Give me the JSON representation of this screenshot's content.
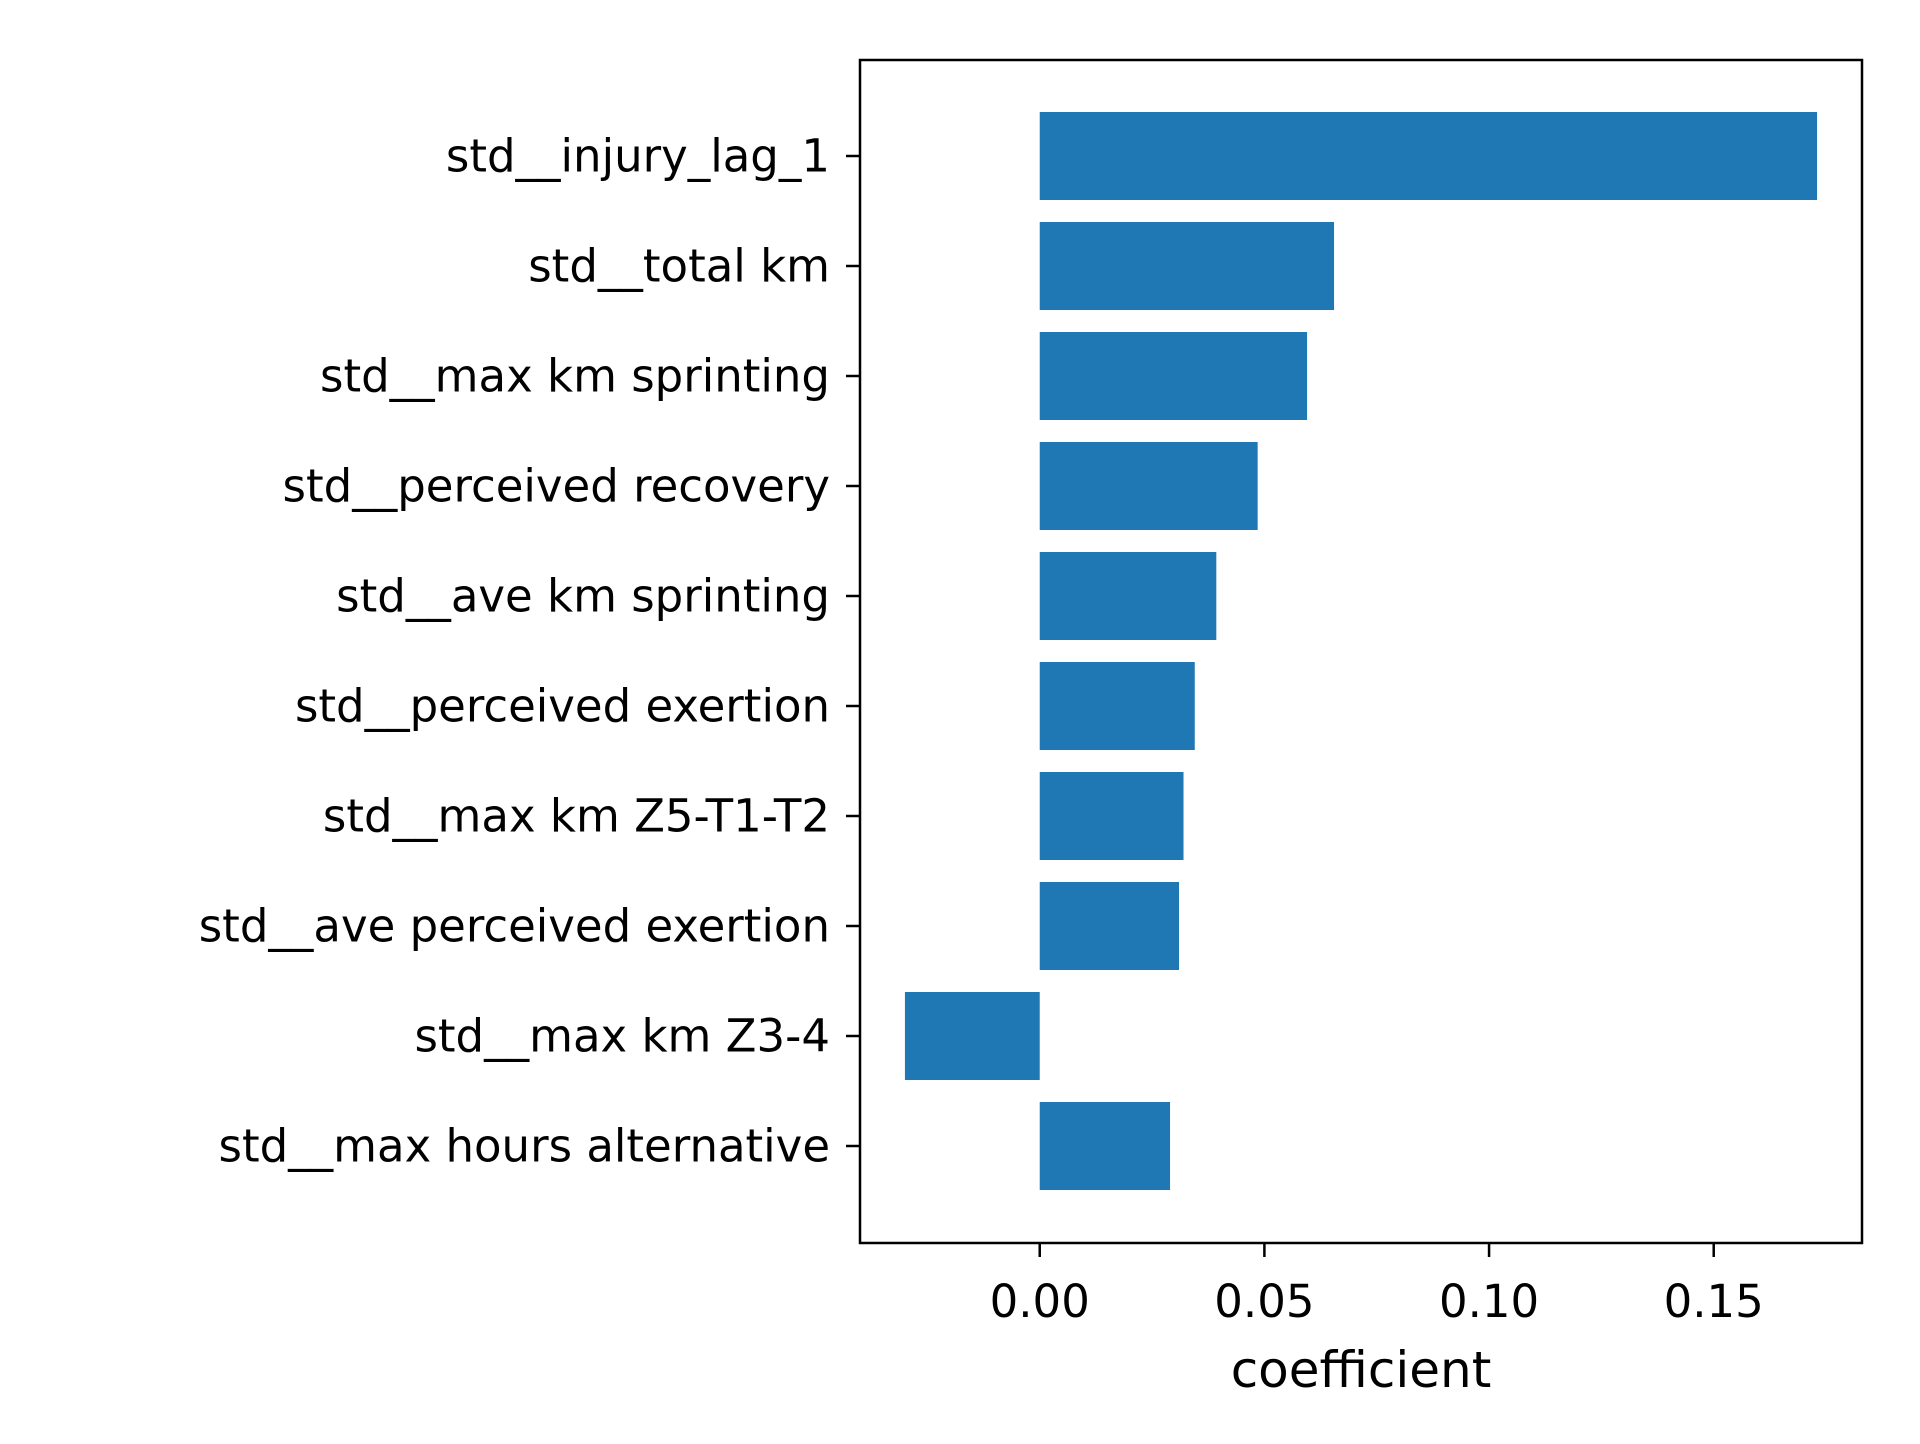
{
  "chart_data": {
    "type": "bar",
    "orientation": "horizontal",
    "categories": [
      "std__injury_lag_1",
      "std__total km",
      "std__max km sprinting",
      "std__perceived recovery",
      "std__ave km sprinting",
      "std__perceived exertion",
      "std__max km Z5-T1-T2",
      "std__ave perceived exertion",
      "std__max km Z3-4",
      "std__max hours alternative"
    ],
    "values": [
      0.173,
      0.0655,
      0.0595,
      0.0485,
      0.0393,
      0.0345,
      0.032,
      0.031,
      -0.03,
      0.029
    ],
    "title": "",
    "xlabel": "coefficient",
    "ylabel": "",
    "xlim": [
      -0.04,
      0.183
    ],
    "xticks": [
      0.0,
      0.05,
      0.1,
      0.15
    ],
    "xtick_labels": [
      "0.00",
      "0.05",
      "0.10",
      "0.15"
    ],
    "grid": false,
    "bar_color": "#1f77b4"
  }
}
